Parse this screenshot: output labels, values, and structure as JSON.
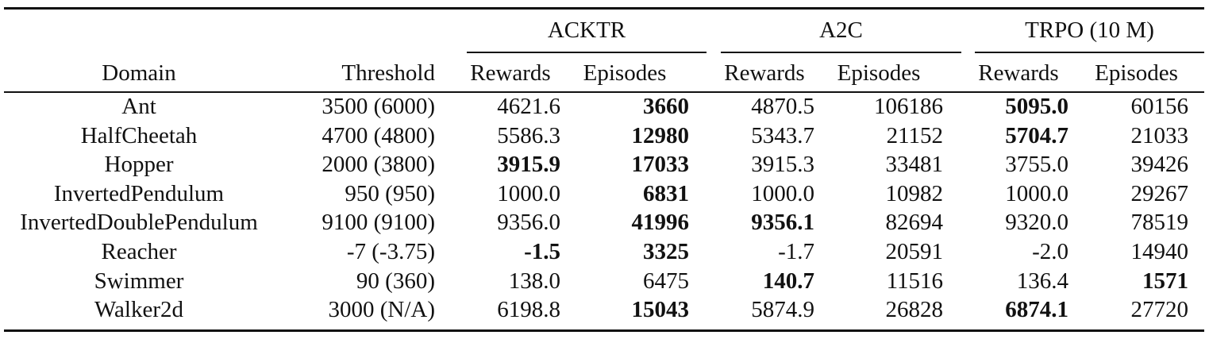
{
  "groups": [
    "ACKTR",
    "A2C",
    "TRPO (10 M)"
  ],
  "headers": [
    "Domain",
    "Threshold",
    "Rewards",
    "Episodes",
    "Rewards",
    "Episodes",
    "Rewards",
    "Episodes"
  ],
  "rows": [
    {
      "domain": "Ant",
      "threshold": "3500 (6000)",
      "values": [
        "4621.6",
        "3660",
        "4870.5",
        "106186",
        "5095.0",
        "60156"
      ],
      "bold": [
        false,
        true,
        false,
        false,
        true,
        false
      ]
    },
    {
      "domain": "HalfCheetah",
      "threshold": "4700 (4800)",
      "values": [
        "5586.3",
        "12980",
        "5343.7",
        "21152",
        "5704.7",
        "21033"
      ],
      "bold": [
        false,
        true,
        false,
        false,
        true,
        false
      ]
    },
    {
      "domain": "Hopper",
      "threshold": "2000 (3800)",
      "values": [
        "3915.9",
        "17033",
        "3915.3",
        "33481",
        "3755.0",
        "39426"
      ],
      "bold": [
        true,
        true,
        false,
        false,
        false,
        false
      ]
    },
    {
      "domain": "InvertedPendulum",
      "threshold": "950 (950)",
      "values": [
        "1000.0",
        "6831",
        "1000.0",
        "10982",
        "1000.0",
        "29267"
      ],
      "bold": [
        false,
        true,
        false,
        false,
        false,
        false
      ]
    },
    {
      "domain": "InvertedDoublePendulum",
      "threshold": "9100 (9100)",
      "values": [
        "9356.0",
        "41996",
        "9356.1",
        "82694",
        "9320.0",
        "78519"
      ],
      "bold": [
        false,
        true,
        true,
        false,
        false,
        false
      ]
    },
    {
      "domain": "Reacher",
      "threshold": "-7 (-3.75)",
      "values": [
        "-1.5",
        "3325",
        "-1.7",
        "20591",
        "-2.0",
        "14940"
      ],
      "bold": [
        true,
        true,
        false,
        false,
        false,
        false
      ]
    },
    {
      "domain": "Swimmer",
      "threshold": "90 (360)",
      "values": [
        "138.0",
        "6475",
        "140.7",
        "11516",
        "136.4",
        "1571"
      ],
      "bold": [
        false,
        false,
        true,
        false,
        false,
        true
      ]
    },
    {
      "domain": "Walker2d",
      "threshold": "3000 (N/A)",
      "values": [
        "6198.8",
        "15043",
        "5874.9",
        "26828",
        "6874.1",
        "27720"
      ],
      "bold": [
        false,
        true,
        false,
        false,
        true,
        false
      ]
    }
  ]
}
